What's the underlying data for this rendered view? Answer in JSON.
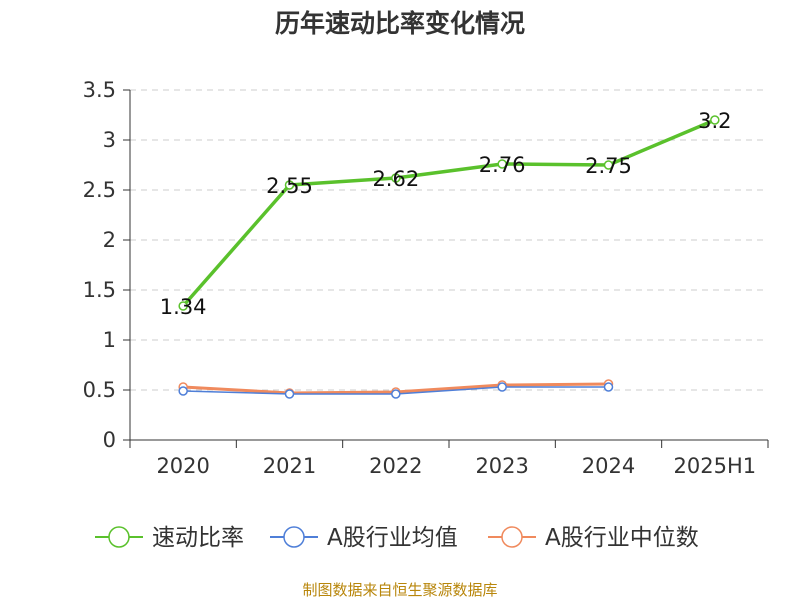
{
  "chart_data": {
    "type": "line",
    "title": "历年速动比率变化情况",
    "categories": [
      "2020",
      "2021",
      "2022",
      "2023",
      "2024",
      "2025H1"
    ],
    "y_ticks": [
      "0",
      "0.5",
      "1",
      "1.5",
      "2",
      "2.5",
      "3",
      "3.5"
    ],
    "ylim": [
      0,
      3.5
    ],
    "grid": true,
    "legend_position": "bottom",
    "series": [
      {
        "name": "速动比率",
        "color": "#5ac12c",
        "values": [
          1.34,
          2.55,
          2.62,
          2.76,
          2.75,
          3.2
        ],
        "labels": [
          "1.34",
          "2.55",
          "2.62",
          "2.76",
          "2.75",
          "3.2"
        ]
      },
      {
        "name": "A股行业均值",
        "color": "#4f7fd8",
        "values": [
          0.49,
          0.46,
          0.46,
          0.53,
          0.53,
          null
        ]
      },
      {
        "name": "A股行业中位数",
        "color": "#f08a5d",
        "values": [
          0.53,
          0.47,
          0.48,
          0.55,
          0.56,
          null
        ]
      }
    ],
    "source": "制图数据来自恒生聚源数据库"
  }
}
